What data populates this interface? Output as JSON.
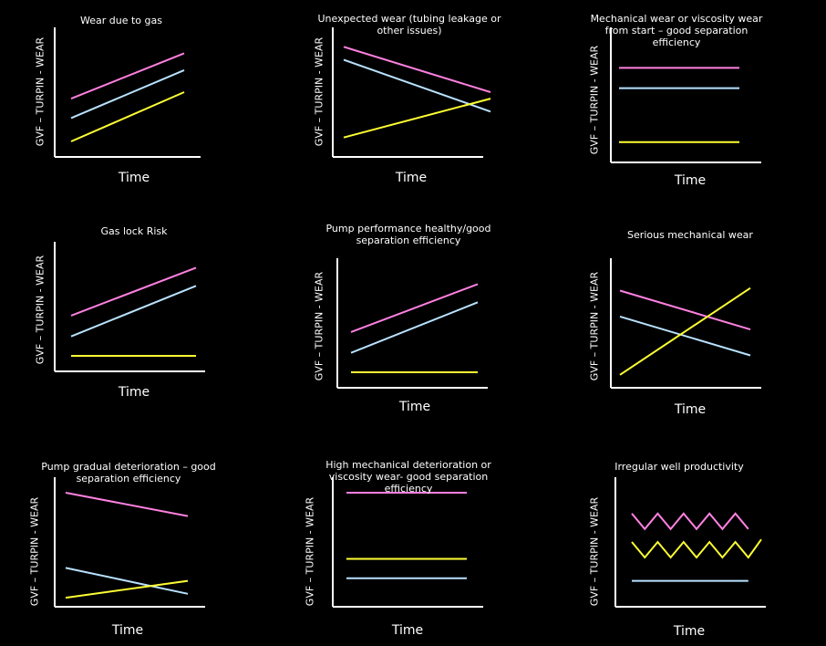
{
  "colors": {
    "pink": "#ff80e0",
    "blue": "#b8e2ff",
    "yellow": "#ffff33",
    "axis": "#ffffff",
    "background": "#000000"
  },
  "chart_data": [
    {
      "type": "line",
      "title": "Wear due to gas",
      "xlabel": "Time",
      "ylabel": "GVF – TURPIN - WEAR",
      "x": [
        0,
        1
      ],
      "series": [
        {
          "name": "pink",
          "values": [
            0.45,
            0.8
          ]
        },
        {
          "name": "blue",
          "values": [
            0.3,
            0.67
          ]
        },
        {
          "name": "yellow",
          "values": [
            0.12,
            0.5
          ]
        }
      ]
    },
    {
      "type": "line",
      "title": "Unexpected wear (tubing leakage or other issues)",
      "xlabel": "Time",
      "ylabel": "GVF – TURPIN - WEAR",
      "x": [
        0,
        1
      ],
      "series": [
        {
          "name": "pink",
          "values": [
            0.85,
            0.5
          ]
        },
        {
          "name": "blue",
          "values": [
            0.75,
            0.35
          ]
        },
        {
          "name": "yellow",
          "values": [
            0.15,
            0.45
          ]
        }
      ]
    },
    {
      "type": "line",
      "title": "Mechanical wear or viscosity wear from start – good separation efficiency",
      "xlabel": "Time",
      "ylabel": "GVF – TURPIN - WEAR",
      "x": [
        0,
        1
      ],
      "series": [
        {
          "name": "pink",
          "values": [
            0.7,
            0.7
          ]
        },
        {
          "name": "blue",
          "values": [
            0.55,
            0.55
          ]
        },
        {
          "name": "yellow",
          "values": [
            0.15,
            0.15
          ]
        }
      ]
    },
    {
      "type": "line",
      "title": "Gas lock Risk",
      "xlabel": "Time",
      "ylabel": "GVF – TURPIN - WEAR",
      "x": [
        0,
        1
      ],
      "series": [
        {
          "name": "pink",
          "values": [
            0.43,
            0.8
          ]
        },
        {
          "name": "blue",
          "values": [
            0.27,
            0.66
          ]
        },
        {
          "name": "yellow",
          "values": [
            0.12,
            0.12
          ]
        }
      ]
    },
    {
      "type": "line",
      "title": "Pump performance healthy/good separation efficiency",
      "xlabel": "Time",
      "ylabel": "GVF – TURPIN - WEAR",
      "x": [
        0,
        1
      ],
      "series": [
        {
          "name": "pink",
          "values": [
            0.43,
            0.8
          ]
        },
        {
          "name": "blue",
          "values": [
            0.27,
            0.66
          ]
        },
        {
          "name": "yellow",
          "values": [
            0.12,
            0.12
          ]
        }
      ]
    },
    {
      "type": "line",
      "title": "Serious mechanical wear",
      "xlabel": "Time",
      "ylabel": "GVF – TURPIN - WEAR",
      "x": [
        0,
        1
      ],
      "series": [
        {
          "name": "pink",
          "values": [
            0.75,
            0.45
          ]
        },
        {
          "name": "blue",
          "values": [
            0.55,
            0.25
          ]
        },
        {
          "name": "yellow",
          "values": [
            0.1,
            0.77
          ]
        }
      ]
    },
    {
      "type": "line",
      "title": "Pump gradual deterioration – good separation efficiency",
      "xlabel": "Time",
      "ylabel": "GVF – TURPIN - WEAR",
      "x": [
        0,
        1
      ],
      "series": [
        {
          "name": "pink",
          "values": [
            0.88,
            0.7
          ]
        },
        {
          "name": "blue",
          "values": [
            0.3,
            0.1
          ]
        },
        {
          "name": "yellow",
          "values": [
            0.07,
            0.2
          ]
        }
      ]
    },
    {
      "type": "line",
      "title": "High mechanical deterioration or viscosity wear- good separation efficiency",
      "xlabel": "Time",
      "ylabel": "GVF – TURPIN - WEAR",
      "x": [
        0,
        1
      ],
      "series": [
        {
          "name": "pink",
          "values": [
            0.88,
            0.88
          ]
        },
        {
          "name": "yellow",
          "values": [
            0.37,
            0.37
          ]
        },
        {
          "name": "blue",
          "values": [
            0.22,
            0.22
          ]
        }
      ]
    },
    {
      "type": "line",
      "title": "Irregular well productivity",
      "xlabel": "Time",
      "ylabel": "GVF – TURPIN - WEAR",
      "x": [
        0,
        0.1,
        0.2,
        0.3,
        0.4,
        0.5,
        0.6,
        0.7,
        0.8,
        0.9,
        1.0
      ],
      "series": [
        {
          "name": "pink",
          "values": [
            0.72,
            0.6,
            0.72,
            0.6,
            0.72,
            0.6,
            0.72,
            0.6,
            0.72,
            0.6,
            null
          ]
        },
        {
          "name": "yellow",
          "values": [
            0.5,
            0.38,
            0.5,
            0.38,
            0.5,
            0.38,
            0.5,
            0.38,
            0.5,
            0.38,
            0.52
          ]
        },
        {
          "name": "blue",
          "values": [
            0.2,
            0.2,
            0.2,
            0.2,
            0.2,
            0.2,
            0.2,
            0.2,
            0.2,
            0.2,
            null
          ]
        }
      ]
    }
  ]
}
